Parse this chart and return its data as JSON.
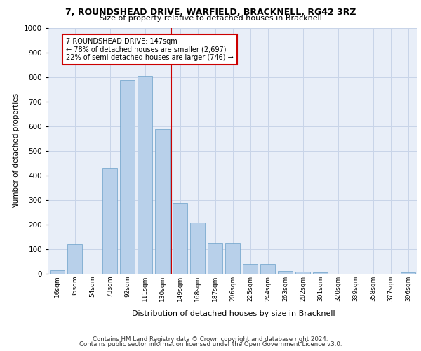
{
  "title1": "7, ROUNDSHEAD DRIVE, WARFIELD, BRACKNELL, RG42 3RZ",
  "title2": "Size of property relative to detached houses in Bracknell",
  "xlabel": "Distribution of detached houses by size in Bracknell",
  "ylabel": "Number of detached properties",
  "categories": [
    "16sqm",
    "35sqm",
    "54sqm",
    "73sqm",
    "92sqm",
    "111sqm",
    "130sqm",
    "149sqm",
    "168sqm",
    "187sqm",
    "206sqm",
    "225sqm",
    "244sqm",
    "263sqm",
    "282sqm",
    "301sqm",
    "320sqm",
    "339sqm",
    "358sqm",
    "377sqm",
    "396sqm"
  ],
  "values": [
    15,
    120,
    0,
    430,
    790,
    805,
    590,
    290,
    210,
    125,
    125,
    40,
    40,
    12,
    10,
    7,
    0,
    0,
    0,
    0,
    7
  ],
  "bar_color": "#b8d0ea",
  "bar_edge_color": "#6a9fc8",
  "grid_color": "#c8d4e8",
  "bg_color": "#e8eef8",
  "vline_xidx": 7.5,
  "vline_color": "#cc0000",
  "annotation_text": "7 ROUNDSHEAD DRIVE: 147sqm\n← 78% of detached houses are smaller (2,697)\n22% of semi-detached houses are larger (746) →",
  "annotation_box_color": "#ffffff",
  "annotation_box_edge": "#cc0000",
  "footer1": "Contains HM Land Registry data © Crown copyright and database right 2024.",
  "footer2": "Contains public sector information licensed under the Open Government Licence v3.0.",
  "ylim": [
    0,
    1000
  ],
  "yticks": [
    0,
    100,
    200,
    300,
    400,
    500,
    600,
    700,
    800,
    900,
    1000
  ]
}
